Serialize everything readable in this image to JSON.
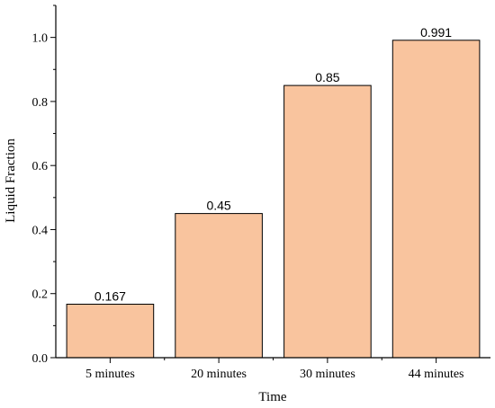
{
  "chart_data": {
    "type": "bar",
    "categories": [
      "5 minutes",
      "20 minutes",
      "30 minutes",
      "44 minutes"
    ],
    "values": [
      0.167,
      0.45,
      0.85,
      0.991
    ],
    "value_labels": [
      "0.167",
      "0.45",
      "0.85",
      "0.991"
    ],
    "xlabel": "Time",
    "ylabel": "Liquid Fraction",
    "ylim": [
      0,
      1.1
    ],
    "yticks": [
      0.0,
      0.2,
      0.4,
      0.6,
      0.8,
      1.0
    ],
    "ytick_labels": [
      "0.0",
      "0.2",
      "0.4",
      "0.6",
      "0.8",
      "1.0"
    ],
    "grid": false,
    "bar_color": "#f9c49e",
    "bar_edge_color": "#000000"
  }
}
